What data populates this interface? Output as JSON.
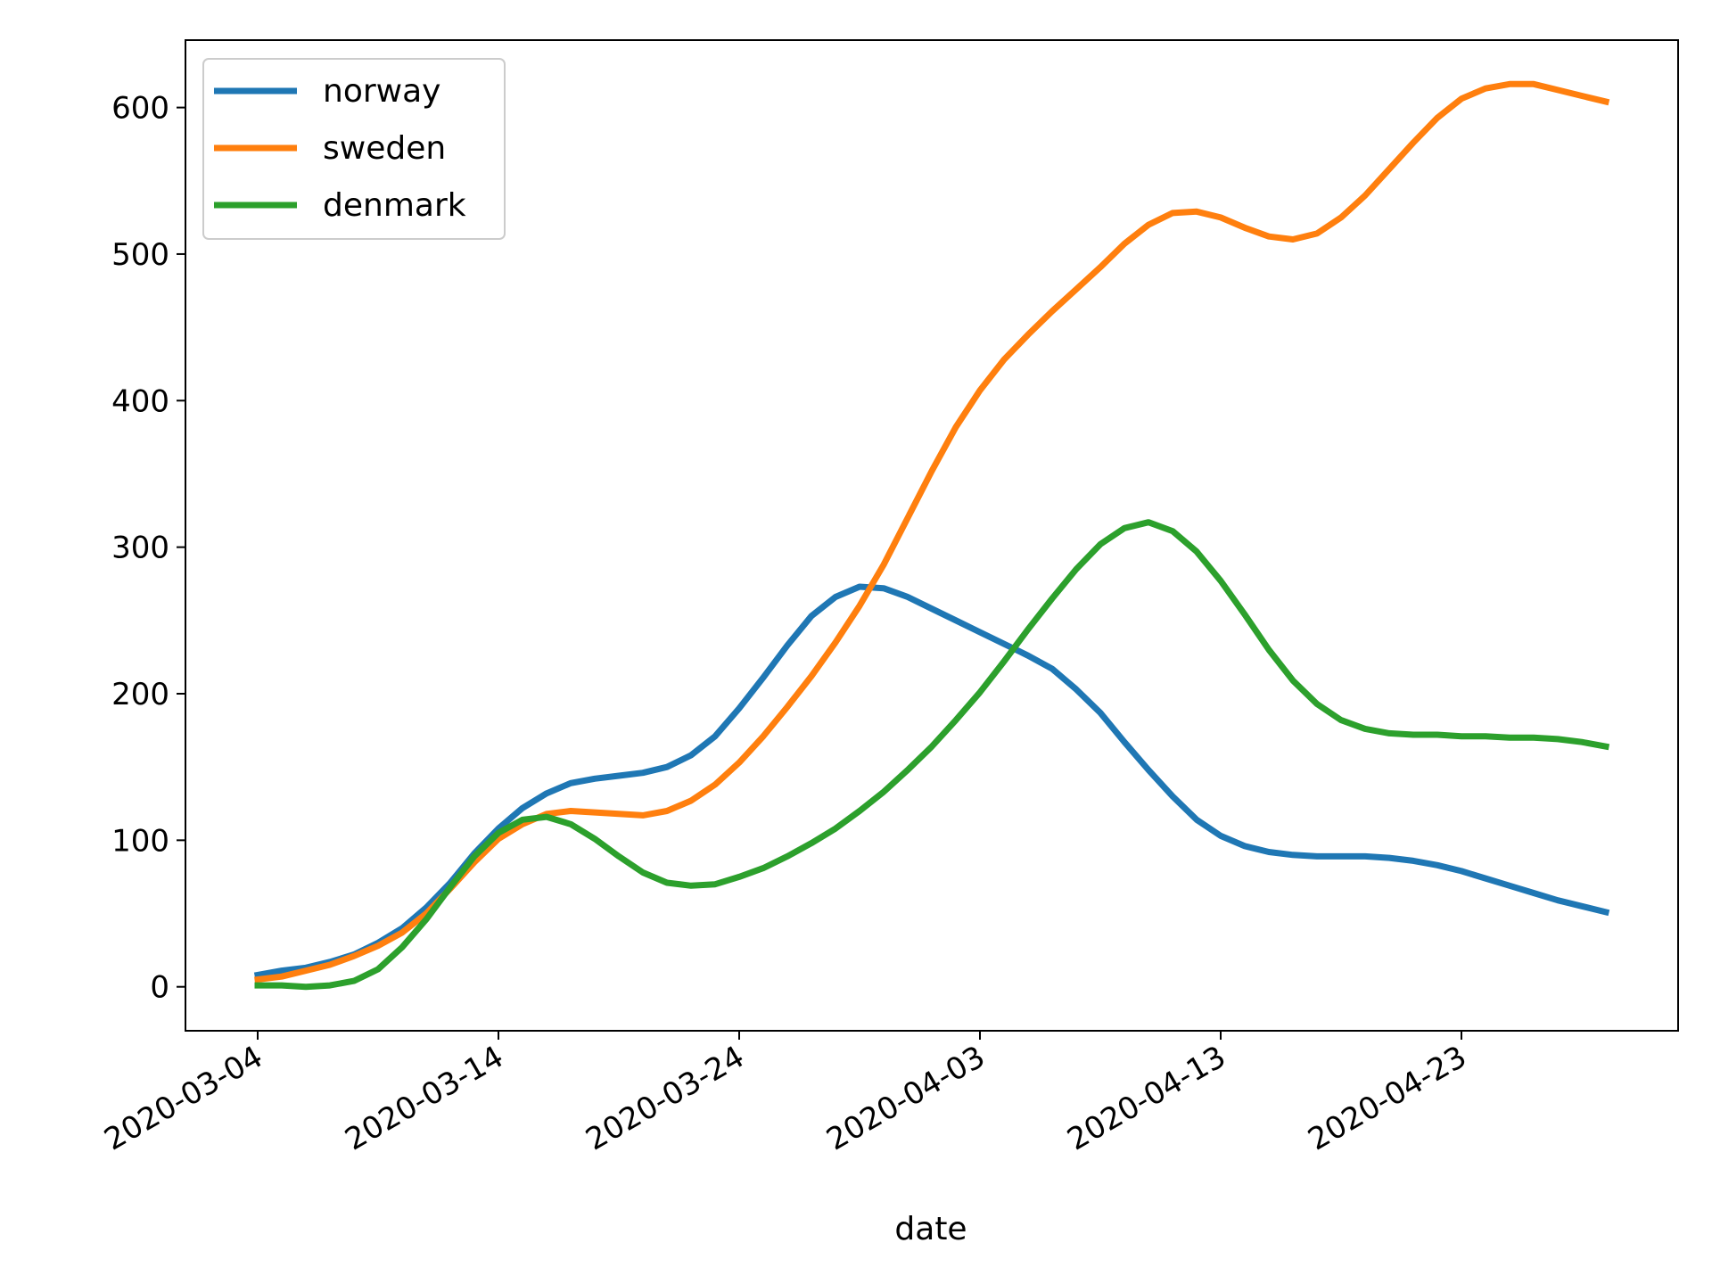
{
  "chart_data": {
    "type": "line",
    "xlabel": "date",
    "ylabel": "",
    "x_ticks": [
      "2020-03-04",
      "2020-03-14",
      "2020-03-24",
      "2020-04-03",
      "2020-04-13",
      "2020-04-23"
    ],
    "y_ticks": [
      "0",
      "100",
      "200",
      "300",
      "400",
      "500",
      "600"
    ],
    "xlim": [
      "2020-03-01",
      "2020-05-02"
    ],
    "ylim": [
      -30,
      646
    ],
    "grid": false,
    "legend_position": "top-left",
    "x": [
      "2020-03-04",
      "2020-03-05",
      "2020-03-06",
      "2020-03-07",
      "2020-03-08",
      "2020-03-09",
      "2020-03-10",
      "2020-03-11",
      "2020-03-12",
      "2020-03-13",
      "2020-03-14",
      "2020-03-15",
      "2020-03-16",
      "2020-03-17",
      "2020-03-18",
      "2020-03-19",
      "2020-03-20",
      "2020-03-21",
      "2020-03-22",
      "2020-03-23",
      "2020-03-24",
      "2020-03-25",
      "2020-03-26",
      "2020-03-27",
      "2020-03-28",
      "2020-03-29",
      "2020-03-30",
      "2020-03-31",
      "2020-04-01",
      "2020-04-02",
      "2020-04-03",
      "2020-04-04",
      "2020-04-05",
      "2020-04-06",
      "2020-04-07",
      "2020-04-08",
      "2020-04-09",
      "2020-04-10",
      "2020-04-11",
      "2020-04-12",
      "2020-04-13",
      "2020-04-14",
      "2020-04-15",
      "2020-04-16",
      "2020-04-17",
      "2020-04-18",
      "2020-04-19",
      "2020-04-20",
      "2020-04-21",
      "2020-04-22",
      "2020-04-23",
      "2020-04-24",
      "2020-04-25",
      "2020-04-26",
      "2020-04-27",
      "2020-04-28",
      "2020-04-29"
    ],
    "series": [
      {
        "name": "norway",
        "color": "#1f77b4",
        "values": [
          8,
          11,
          13,
          17,
          22,
          30,
          40,
          54,
          71,
          91,
          108,
          122,
          132,
          139,
          142,
          144,
          146,
          150,
          158,
          171,
          190,
          211,
          233,
          253,
          266,
          273,
          272,
          266,
          258,
          250,
          242,
          234,
          226,
          217,
          203,
          187,
          167,
          148,
          130,
          114,
          103,
          96,
          92,
          90,
          89,
          89,
          89,
          88,
          86,
          83,
          79,
          74,
          69,
          64,
          59,
          55,
          51
        ]
      },
      {
        "name": "sweden",
        "color": "#ff7f0e",
        "values": [
          5,
          7,
          11,
          15,
          21,
          28,
          37,
          50,
          67,
          85,
          101,
          111,
          118,
          120,
          119,
          118,
          117,
          120,
          127,
          138,
          153,
          171,
          191,
          212,
          235,
          260,
          288,
          320,
          352,
          382,
          407,
          428,
          445,
          461,
          476,
          491,
          507,
          520,
          528,
          529,
          525,
          518,
          512,
          510,
          514,
          525,
          540,
          558,
          576,
          593,
          606,
          613,
          616,
          616,
          612,
          608,
          604
        ]
      },
      {
        "name": "denmark",
        "color": "#2ca02c",
        "values": [
          1,
          1,
          0,
          1,
          4,
          12,
          27,
          46,
          68,
          89,
          105,
          114,
          116,
          111,
          101,
          89,
          78,
          71,
          69,
          70,
          75,
          81,
          89,
          98,
          108,
          120,
          133,
          148,
          164,
          182,
          201,
          222,
          244,
          265,
          285,
          302,
          313,
          317,
          311,
          297,
          277,
          254,
          230,
          209,
          193,
          182,
          176,
          173,
          172,
          172,
          171,
          171,
          170,
          170,
          169,
          167,
          164
        ]
      }
    ]
  }
}
